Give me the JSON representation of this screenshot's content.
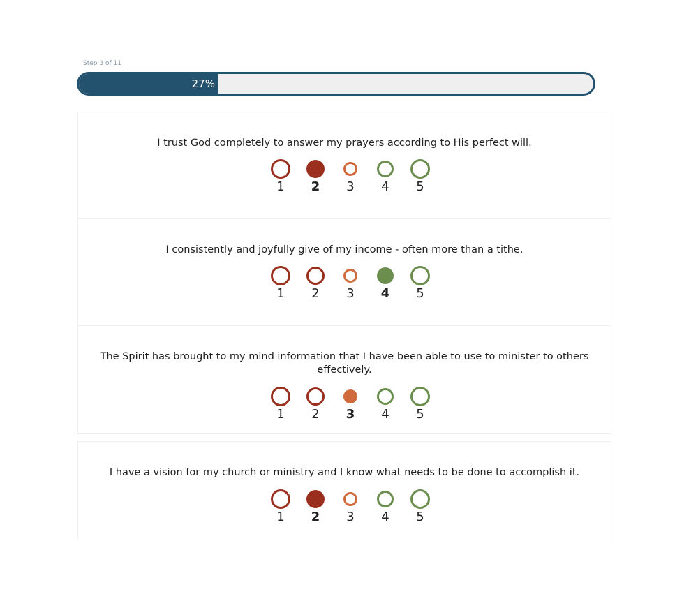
{
  "progress": {
    "step_label": "Step 3 of 11",
    "percent": 27,
    "percent_label": "27%",
    "color": "#23526f"
  },
  "scale": {
    "labels": [
      "1",
      "2",
      "3",
      "4",
      "5"
    ],
    "colors": [
      "#9b2f1e",
      "#9b2f1e",
      "#d06a3c",
      "#6b8e4e",
      "#6b8e4e"
    ]
  },
  "questions": [
    {
      "text": "I trust God completely to answer my prayers according to His perfect will.",
      "selected": 2
    },
    {
      "text": "I consistently and joyfully give of my income - often more than a tithe.",
      "selected": 4
    },
    {
      "text": "The Spirit has brought to my mind information that I have been able to use to minister to others effectively.",
      "selected": 3
    },
    {
      "text": "I have a vision for my church or ministry and I know what needs to be done to accomplish it.",
      "selected": 2
    }
  ]
}
